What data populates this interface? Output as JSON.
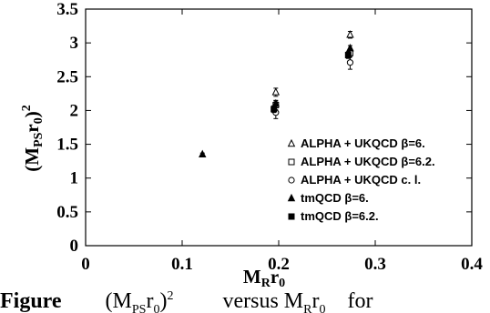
{
  "chart_data": {
    "type": "scatter",
    "xlabel": "M_R r_0",
    "ylabel": "(M_PS r_0)^2",
    "xlim": [
      0,
      0.4
    ],
    "ylim": [
      0,
      3.5
    ],
    "xticks": [
      "0",
      "0.1",
      "0.2",
      "0.3",
      "0.4"
    ],
    "yticks": [
      "0",
      "0.5",
      "1",
      "1.5",
      "2",
      "2.5",
      "3",
      "3.5"
    ],
    "legend_position": "right",
    "grid": false,
    "series": [
      {
        "name": "ALPHA + UKQCD β=6.",
        "marker": "triangle-open",
        "points": [
          {
            "x": 0.197,
            "y": 2.27,
            "err": 0.06
          },
          {
            "x": 0.274,
            "y": 3.12,
            "err": 0.05
          }
        ]
      },
      {
        "name": "ALPHA + UKQCD β=6.2.",
        "marker": "square-open",
        "points": [
          {
            "x": 0.197,
            "y": 2.08,
            "err": 0.07
          },
          {
            "x": 0.274,
            "y": 2.85,
            "err": 0.06
          }
        ]
      },
      {
        "name": "ALPHA + UKQCD c. l.",
        "marker": "circle-open",
        "points": [
          {
            "x": 0.197,
            "y": 1.97,
            "err": 0.09
          },
          {
            "x": 0.274,
            "y": 2.71,
            "err": 0.1
          }
        ]
      },
      {
        "name": "tmQCD β=6.",
        "marker": "triangle-filled",
        "points": [
          {
            "x": 0.121,
            "y": 1.35,
            "err": 0.02
          },
          {
            "x": 0.197,
            "y": 2.1,
            "err": 0.04
          },
          {
            "x": 0.274,
            "y": 2.92,
            "err": 0.04
          }
        ]
      },
      {
        "name": "tmQCD β=6.2.",
        "marker": "square-filled",
        "points": [
          {
            "x": 0.195,
            "y": 2.02,
            "err": 0.05
          },
          {
            "x": 0.272,
            "y": 2.82,
            "err": 0.05
          }
        ]
      }
    ]
  },
  "caption": {
    "label": "Figure",
    "formula": "(M",
    "formula_sub": "PS",
    "formula_end": "r",
    "formula_end_sub": "0",
    "formula_close": ")",
    "formula_sup": "2",
    "rest": "versus M",
    "rest_sub": "R",
    "rest_end": "r",
    "rest_end_sub": "0",
    "tail": "for"
  }
}
